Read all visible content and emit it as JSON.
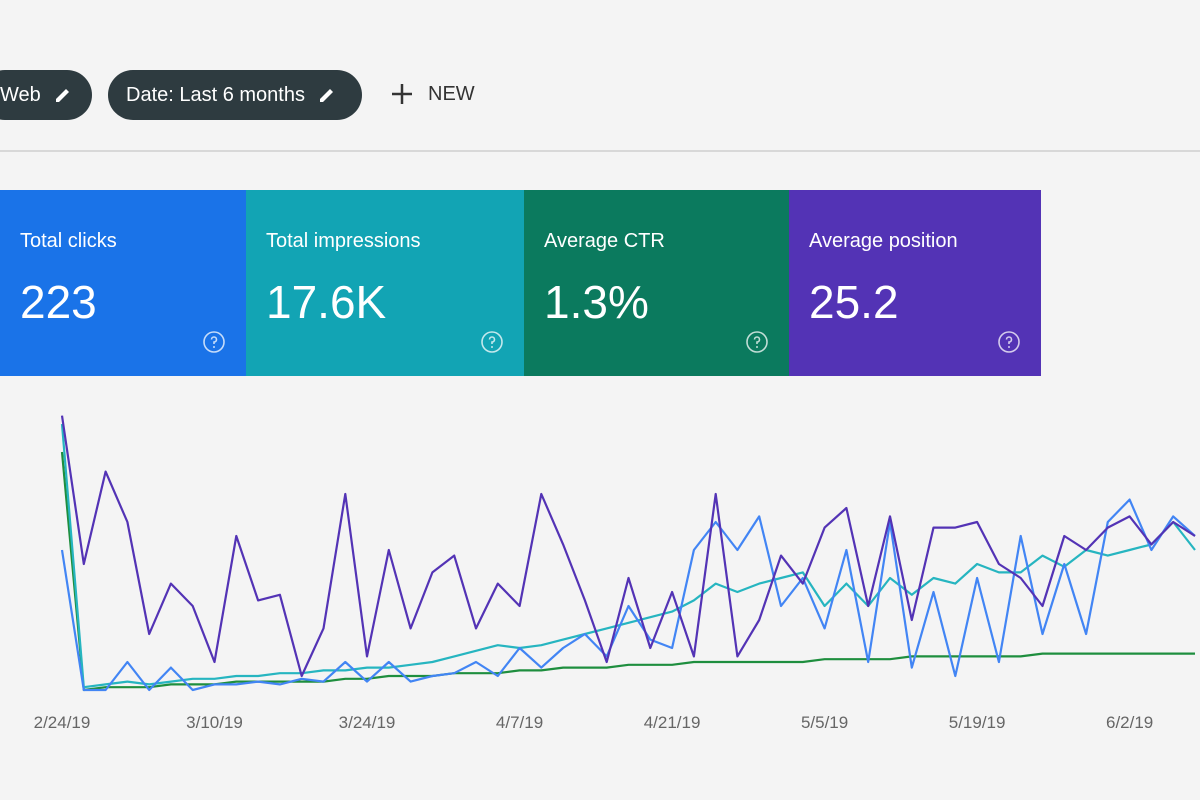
{
  "toolbar": {
    "chips": [
      "Web",
      "Date: Last 6 months"
    ],
    "new_button": "NEW"
  },
  "metrics": [
    {
      "label": "Total clicks",
      "value": "223",
      "color": "#1a73e8"
    },
    {
      "label": "Total impressions",
      "value": "17.6K",
      "color": "#12a4b4"
    },
    {
      "label": "Average CTR",
      "value": "1.3%",
      "color": "#0b7a5e"
    },
    {
      "label": "Average position",
      "value": "25.2",
      "color": "#5333b5"
    }
  ],
  "chart_data": {
    "type": "line",
    "categories": [
      "2/24/19",
      null,
      null,
      null,
      null,
      null,
      null,
      "3/10/19",
      null,
      null,
      null,
      null,
      null,
      null,
      "3/24/19",
      null,
      null,
      null,
      null,
      null,
      null,
      "4/7/19",
      null,
      null,
      null,
      null,
      null,
      null,
      "4/21/19",
      null,
      null,
      null,
      null,
      null,
      null,
      "5/5/19",
      null,
      null,
      null,
      null,
      null,
      null,
      "5/19/19",
      null,
      null,
      null,
      null,
      null,
      null,
      "6/2/19",
      null,
      null,
      null
    ],
    "series": [
      {
        "color": "#1e8e3e",
        "values": [
          85,
          0,
          1,
          1,
          1,
          2,
          2,
          2,
          3,
          3,
          3,
          3,
          3,
          4,
          4,
          5,
          5,
          5,
          6,
          6,
          6,
          7,
          7,
          8,
          8,
          8,
          9,
          9,
          9,
          10,
          10,
          10,
          10,
          10,
          10,
          11,
          11,
          11,
          11,
          12,
          12,
          12,
          12,
          12,
          12,
          13,
          13,
          13,
          13,
          13,
          13,
          13,
          13
        ]
      },
      {
        "color": "#26b5c0",
        "values": [
          95,
          1,
          2,
          3,
          2,
          3,
          4,
          4,
          5,
          5,
          6,
          6,
          7,
          7,
          8,
          8,
          9,
          10,
          12,
          14,
          16,
          15,
          16,
          18,
          20,
          22,
          24,
          26,
          28,
          32,
          38,
          35,
          38,
          40,
          42,
          30,
          38,
          30,
          40,
          34,
          40,
          38,
          45,
          42,
          42,
          48,
          44,
          50,
          48,
          50,
          52,
          60,
          50
        ]
      },
      {
        "color": "#4285f4",
        "values": [
          50,
          0,
          0,
          10,
          0,
          8,
          0,
          2,
          2,
          3,
          2,
          4,
          3,
          10,
          3,
          10,
          3,
          5,
          6,
          10,
          5,
          15,
          8,
          15,
          20,
          12,
          30,
          18,
          15,
          50,
          60,
          50,
          62,
          30,
          40,
          22,
          50,
          10,
          60,
          8,
          35,
          5,
          40,
          10,
          55,
          20,
          45,
          20,
          60,
          68,
          50,
          62,
          55
        ]
      },
      {
        "color": "#5333b5",
        "values": [
          98,
          45,
          78,
          60,
          20,
          38,
          30,
          10,
          55,
          32,
          34,
          5,
          22,
          70,
          12,
          50,
          22,
          42,
          48,
          22,
          38,
          30,
          70,
          52,
          32,
          10,
          40,
          15,
          35,
          12,
          70,
          12,
          25,
          48,
          38,
          58,
          65,
          30,
          62,
          25,
          58,
          58,
          60,
          45,
          40,
          30,
          55,
          50,
          58,
          62,
          52,
          60,
          55
        ]
      }
    ],
    "ylim": [
      0,
      100
    ]
  }
}
